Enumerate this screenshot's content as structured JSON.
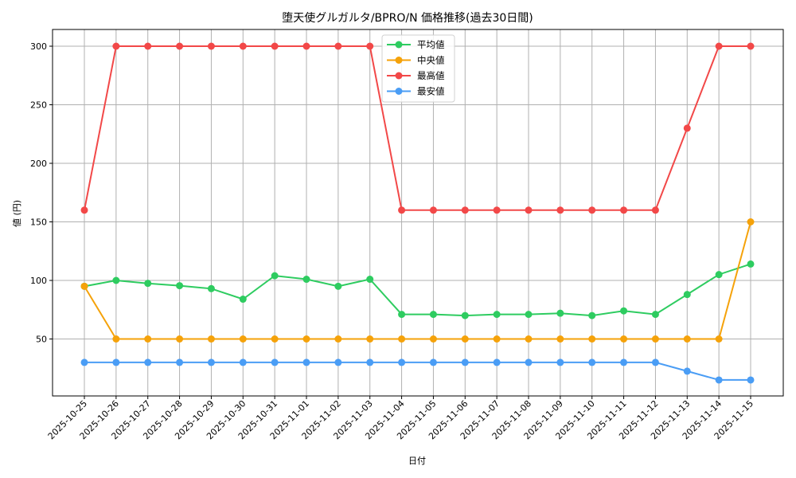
{
  "chart_data": {
    "type": "line",
    "title": "堕天使グルガルタ/BPRO/N 価格推移(過去30日間)",
    "xlabel": "日付",
    "ylabel": "値 (円)",
    "ylim": [
      0,
      315
    ],
    "yticks": [
      50,
      100,
      150,
      200,
      250,
      300
    ],
    "grid": true,
    "legend_position": "upper center",
    "categories": [
      "2025-10-25",
      "2025-10-26",
      "2025-10-27",
      "2025-10-28",
      "2025-10-29",
      "2025-10-30",
      "2025-10-31",
      "2025-11-01",
      "2025-11-02",
      "2025-11-03",
      "2025-11-04",
      "2025-11-05",
      "2025-11-06",
      "2025-11-07",
      "2025-11-08",
      "2025-11-09",
      "2025-11-10",
      "2025-11-11",
      "2025-11-12",
      "2025-11-13",
      "2025-11-14",
      "2025-11-15"
    ],
    "series": [
      {
        "name": "平均値",
        "color": "#2ecc60",
        "values": [
          95,
          100,
          97.5,
          95.5,
          93,
          84,
          104,
          101,
          95,
          101,
          71,
          71,
          70,
          71,
          71,
          72,
          70,
          74,
          71,
          88,
          105,
          114
        ]
      },
      {
        "name": "中央値",
        "color": "#f5a20a",
        "values": [
          95,
          50,
          50,
          50,
          50,
          50,
          50,
          50,
          50,
          50,
          50,
          50,
          50,
          50,
          50,
          50,
          50,
          50,
          50,
          50,
          50,
          150
        ]
      },
      {
        "name": "最高値",
        "color": "#f24848",
        "values": [
          160,
          300,
          300,
          300,
          300,
          300,
          300,
          300,
          300,
          300,
          160,
          160,
          160,
          160,
          160,
          160,
          160,
          160,
          160,
          230,
          300,
          300
        ]
      },
      {
        "name": "最安値",
        "color": "#4a9df5",
        "values": [
          30,
          30,
          30,
          30,
          30,
          30,
          30,
          30,
          30,
          30,
          30,
          30,
          30,
          30,
          30,
          30,
          30,
          30,
          30,
          22.5,
          15,
          15
        ]
      }
    ]
  }
}
